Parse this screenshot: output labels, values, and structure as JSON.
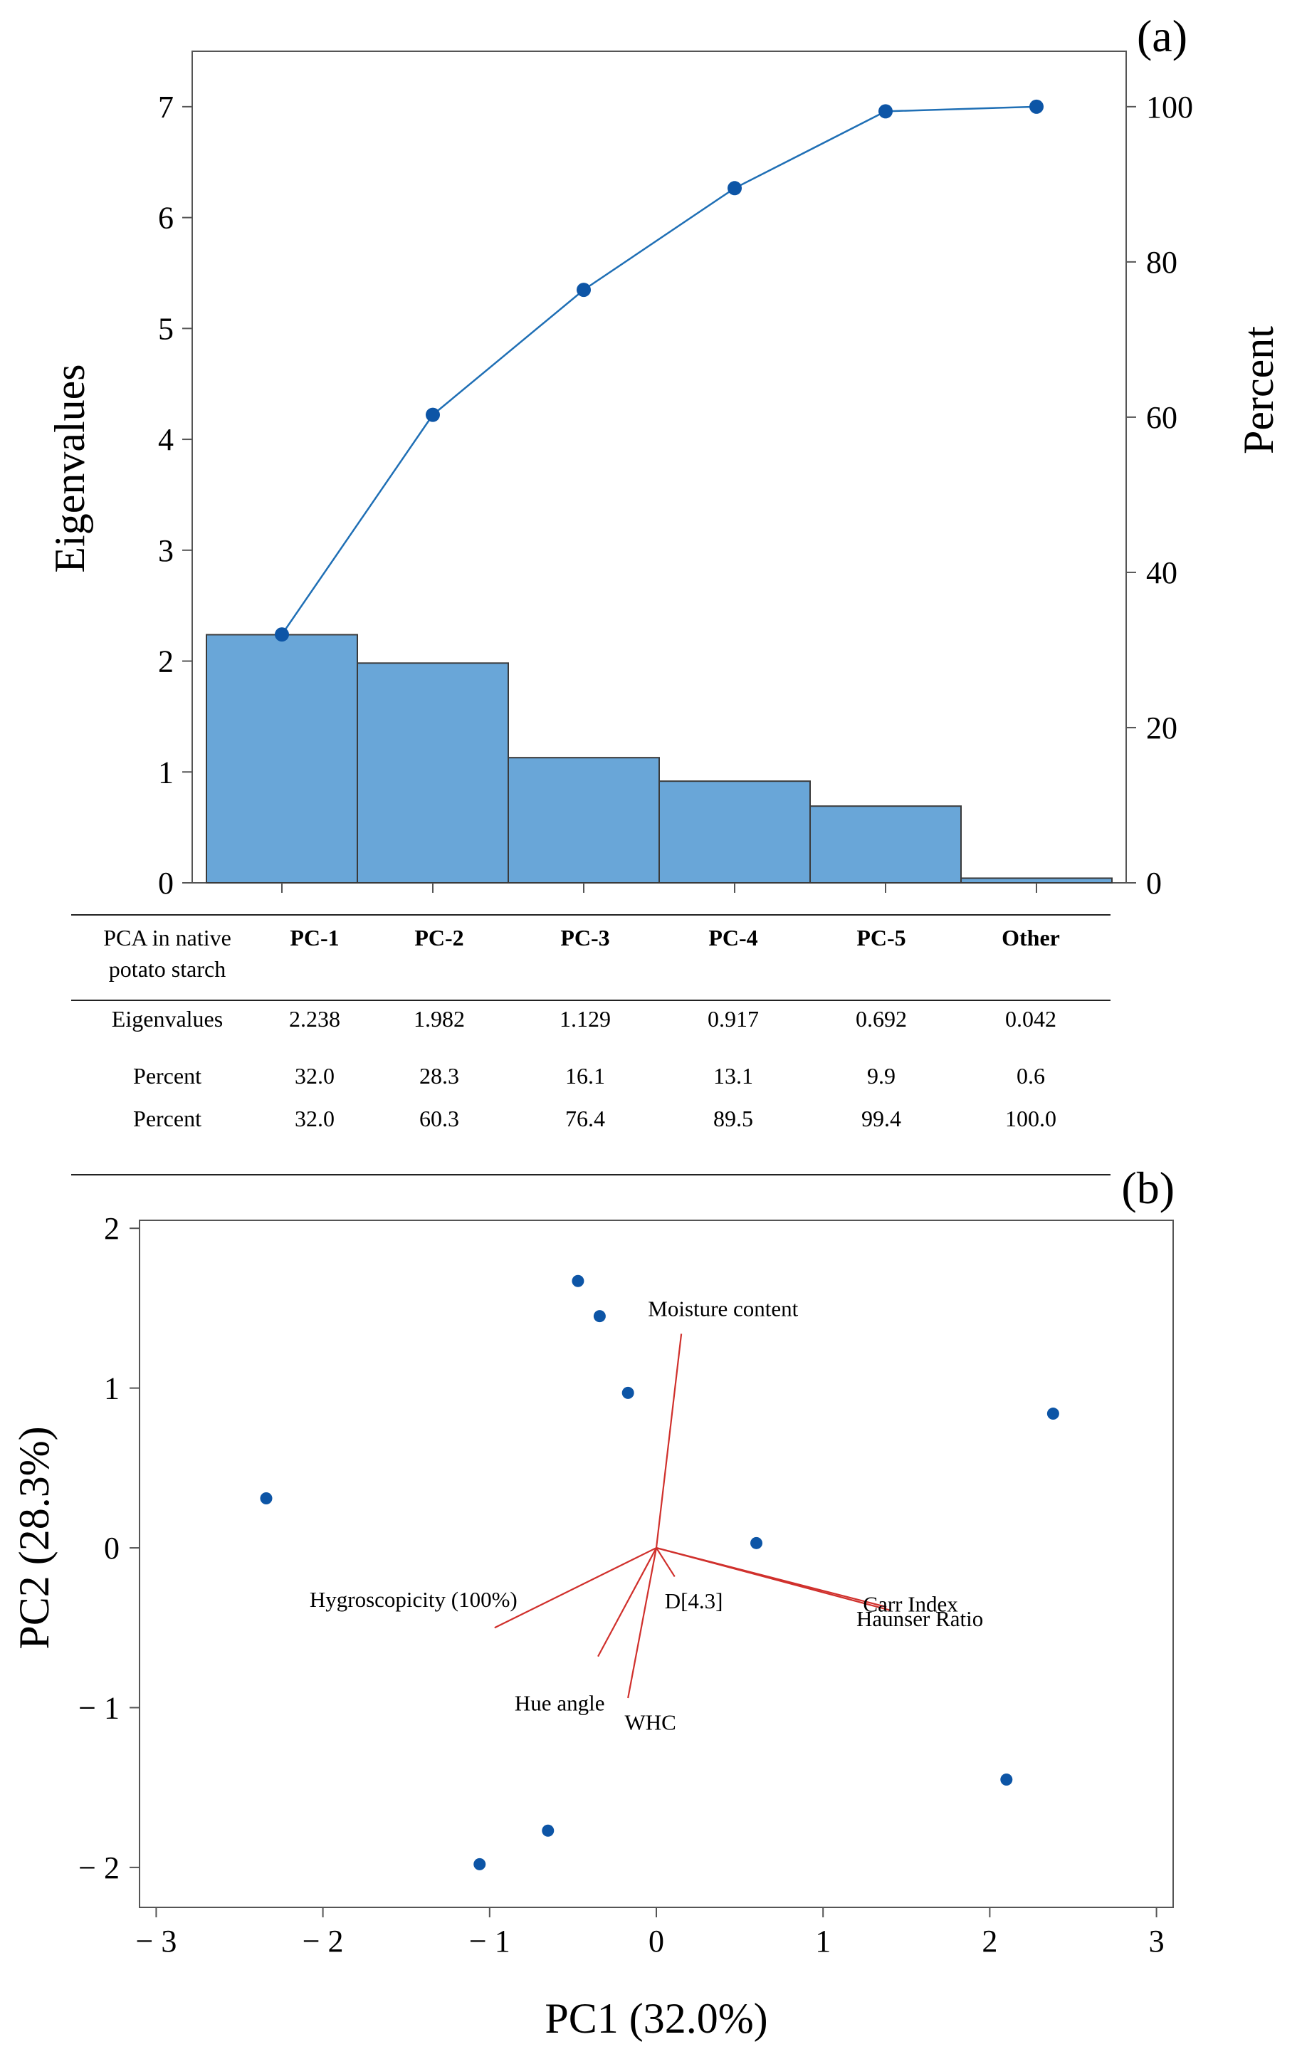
{
  "panel_a": {
    "label": "(a)",
    "table": {
      "header": [
        "PCA in native\npotato starch",
        "PC-1",
        "PC-2",
        "PC-3",
        "PC-4",
        "PC-5",
        "Other"
      ],
      "rows": [
        [
          "Eigenvalues",
          "2.238",
          "1.982",
          "1.129",
          "0.917",
          "0.692",
          "0.042"
        ],
        [
          "Percent",
          "32.0",
          "28.3",
          "16.1",
          "13.1",
          "9.9",
          "0.6"
        ],
        [
          "Percent",
          "32.0",
          "60.3",
          "76.4",
          "89.5",
          "99.4",
          "100.0"
        ]
      ]
    }
  },
  "panel_b": {
    "label": "(b)"
  },
  "chart_data": [
    {
      "type": "bar",
      "title": "",
      "xlabel": "",
      "ylabel": "Eigenvalues",
      "y2label": "Percent",
      "categories": [
        "PC-1",
        "PC-2",
        "PC-3",
        "PC-4",
        "PC-5",
        "Other"
      ],
      "ylim": [
        0,
        7.5
      ],
      "y2lim": [
        0,
        107.14
      ],
      "yticks": [
        0,
        1,
        2,
        3,
        4,
        5,
        6,
        7
      ],
      "y2ticks": [
        0,
        20,
        40,
        60,
        80,
        100
      ],
      "series": [
        {
          "type": "bar",
          "axis": "left",
          "values": [
            2.238,
            1.982,
            1.129,
            0.917,
            0.692,
            0.042
          ],
          "color": "#69a6d8"
        },
        {
          "type": "line",
          "axis": "right",
          "values": [
            32.0,
            60.3,
            76.4,
            89.5,
            99.4,
            100.0
          ],
          "color": "#1f6fb5",
          "marker_color": "#0d55a6"
        }
      ]
    },
    {
      "type": "scatter",
      "title": "",
      "xlabel": "PC1 (32.0%)",
      "ylabel": "PC2 (28.3%)",
      "xlim": [
        -3.1,
        3.1
      ],
      "ylim": [
        -2.25,
        2.05
      ],
      "xticks": [
        -3,
        -2,
        -1,
        0,
        1,
        2,
        3
      ],
      "yticks": [
        -2,
        -1,
        0,
        1,
        2
      ],
      "tick_text": {
        "-3": "− 3",
        "-2": "− 2",
        "-1": "− 1",
        "0": "0",
        "1": "1",
        "2": "2",
        "3": "3"
      },
      "points": [
        {
          "x": -0.47,
          "y": 1.67
        },
        {
          "x": -0.34,
          "y": 1.45
        },
        {
          "x": -0.17,
          "y": 0.97
        },
        {
          "x": 2.38,
          "y": 0.84
        },
        {
          "x": -2.34,
          "y": 0.31
        },
        {
          "x": 0.6,
          "y": 0.03
        },
        {
          "x": 2.1,
          "y": -1.45
        },
        {
          "x": -0.65,
          "y": -1.77
        },
        {
          "x": -1.06,
          "y": -1.98
        }
      ],
      "point_color": "#0d55a6",
      "loadings": [
        {
          "name": "Moisture content",
          "x": 0.15,
          "y": 1.34
        },
        {
          "name": "Hygroscopicity (100%)",
          "x": -0.97,
          "y": -0.5
        },
        {
          "name": "D[4.3]",
          "x": 0.11,
          "y": -0.18
        },
        {
          "name": "Carr Index",
          "x": 1.38,
          "y": -0.37
        },
        {
          "name": "Haunser Ratio",
          "x": 1.4,
          "y": -0.39
        },
        {
          "name": "Hue angle",
          "x": -0.35,
          "y": -0.68
        },
        {
          "name": "WHC",
          "x": -0.17,
          "y": -0.94
        }
      ],
      "loading_color": "#d0302c"
    }
  ]
}
